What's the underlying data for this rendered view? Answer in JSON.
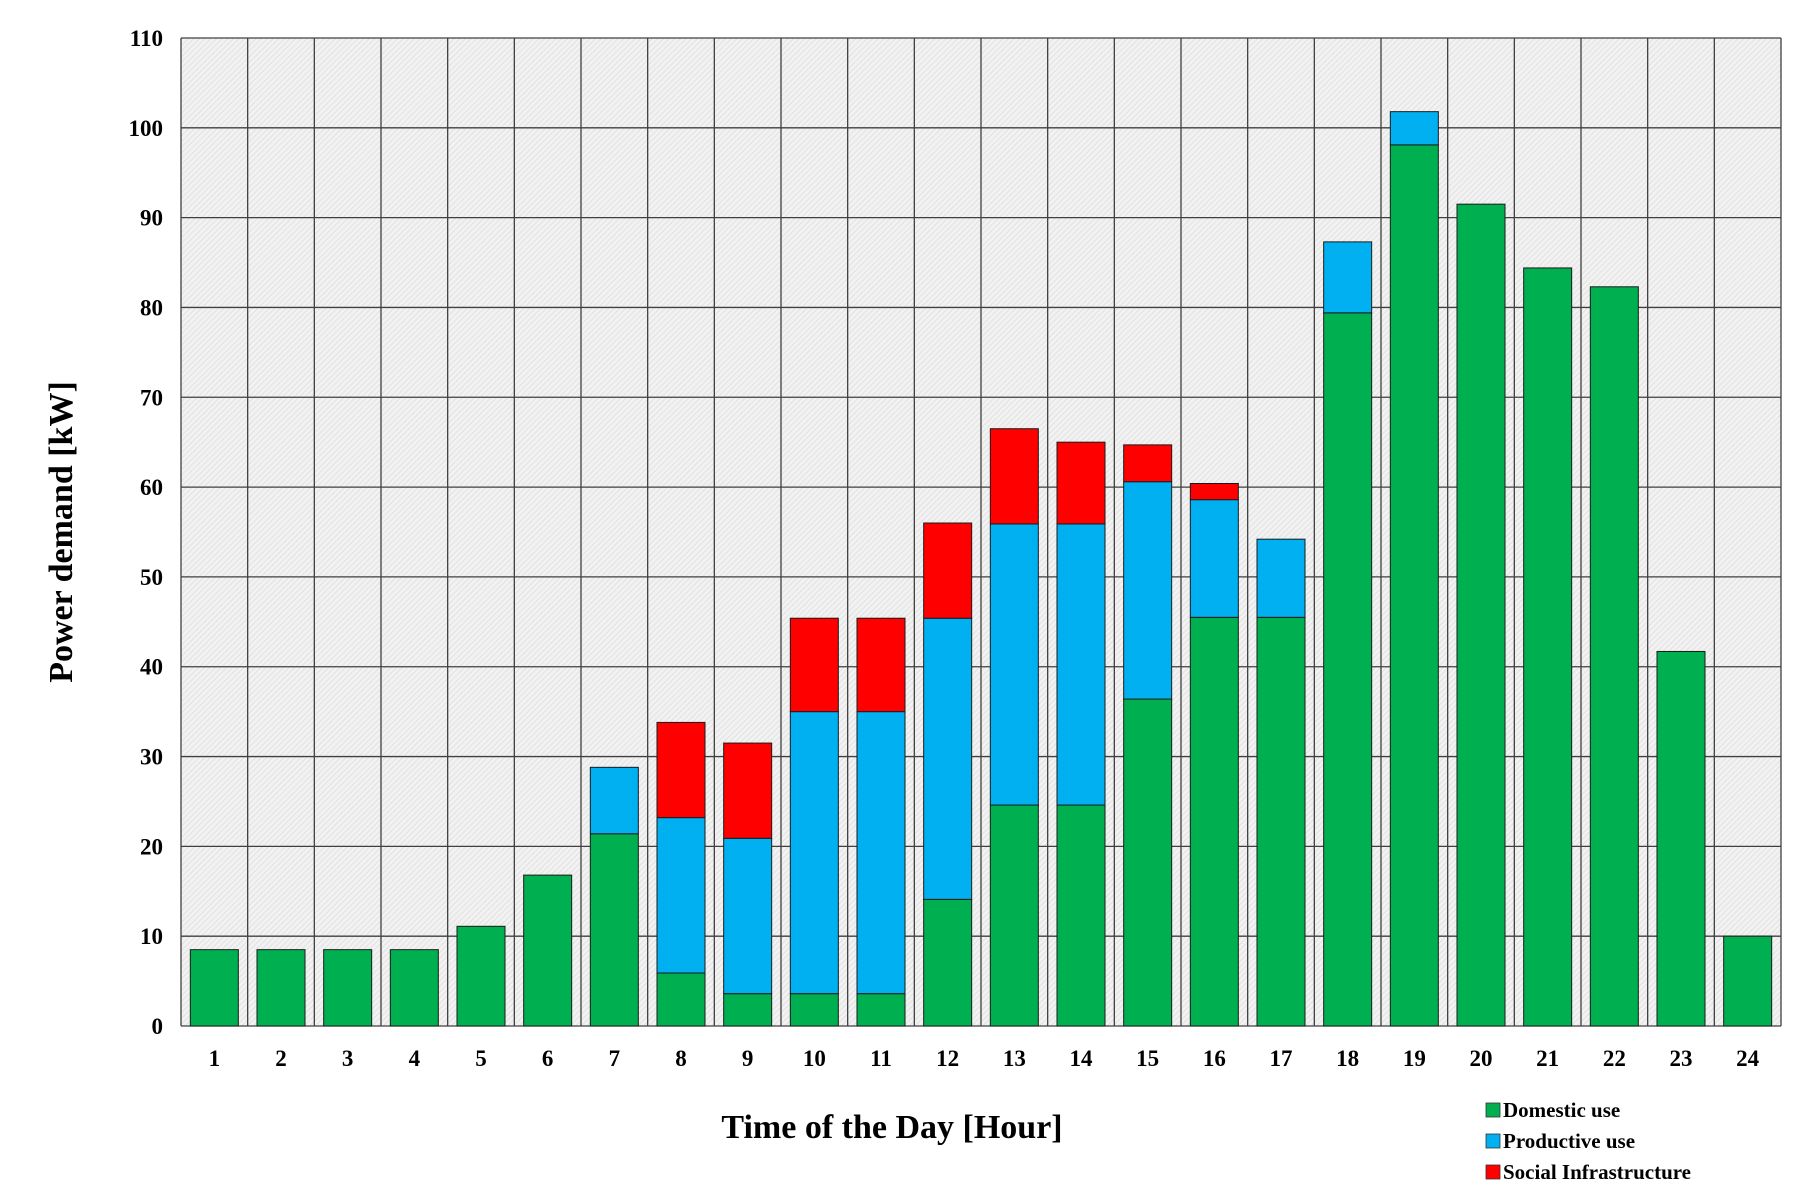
{
  "chart_data": {
    "type": "bar",
    "stacked": true,
    "title": "",
    "xlabel": "Time of the Day [Hour]",
    "ylabel": "Power demand [kW]",
    "ylim": [
      0,
      110
    ],
    "yticks": [
      0,
      10,
      20,
      30,
      40,
      50,
      60,
      70,
      80,
      90,
      100,
      110
    ],
    "grid": true,
    "legend_position": "bottom-right",
    "categories": [
      "1",
      "2",
      "3",
      "4",
      "5",
      "6",
      "7",
      "8",
      "9",
      "10",
      "11",
      "12",
      "13",
      "14",
      "15",
      "16",
      "17",
      "18",
      "19",
      "20",
      "21",
      "22",
      "23",
      "24"
    ],
    "series": [
      {
        "name": "Domestic use",
        "color": "#00b050",
        "values": [
          8.5,
          8.5,
          8.5,
          8.5,
          11.1,
          16.8,
          21.4,
          5.9,
          3.6,
          3.6,
          3.6,
          14.1,
          24.6,
          24.6,
          36.4,
          45.5,
          45.5,
          79.4,
          98.1,
          91.5,
          84.4,
          82.3,
          41.7,
          10.0
        ]
      },
      {
        "name": "Productive use",
        "color": "#00b0f0",
        "values": [
          0,
          0,
          0,
          0,
          0,
          0,
          7.4,
          17.3,
          17.3,
          31.4,
          31.4,
          31.3,
          31.3,
          31.3,
          24.2,
          13.1,
          8.7,
          7.9,
          3.7,
          0,
          0,
          0,
          0,
          0
        ]
      },
      {
        "name": "Social Infrastructure",
        "color": "#ff0000",
        "values": [
          0,
          0,
          0,
          0,
          0,
          0,
          0,
          10.6,
          10.6,
          10.4,
          10.4,
          10.6,
          10.6,
          9.1,
          4.1,
          1.8,
          0,
          0,
          0,
          0,
          0,
          0,
          0,
          0
        ]
      }
    ]
  }
}
